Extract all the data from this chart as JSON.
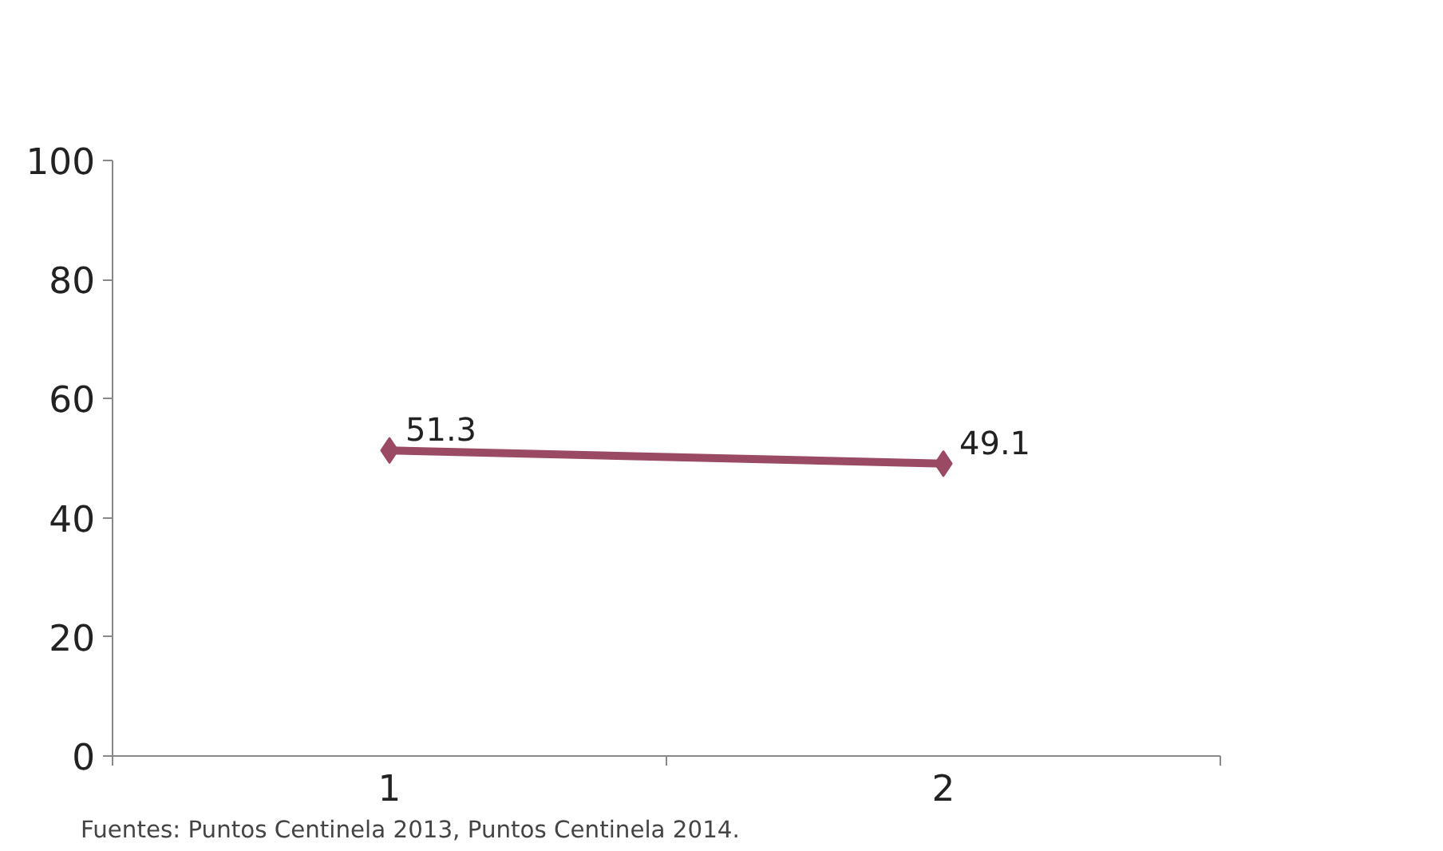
{
  "chart_data": {
    "type": "line",
    "categories": [
      "1",
      "2"
    ],
    "series": [
      {
        "color": "#9b4a64",
        "values": [
          51.3,
          49.1
        ]
      }
    ],
    "ylim": [
      0,
      100
    ],
    "yticks": [
      0,
      20,
      40,
      60,
      80,
      100
    ],
    "marker": "diamond",
    "line_style": "solid",
    "data_labels": true,
    "grid": false,
    "annotations": [
      "Fuentes: Puntos Centinela 2013, Puntos Centinela 2014."
    ]
  }
}
